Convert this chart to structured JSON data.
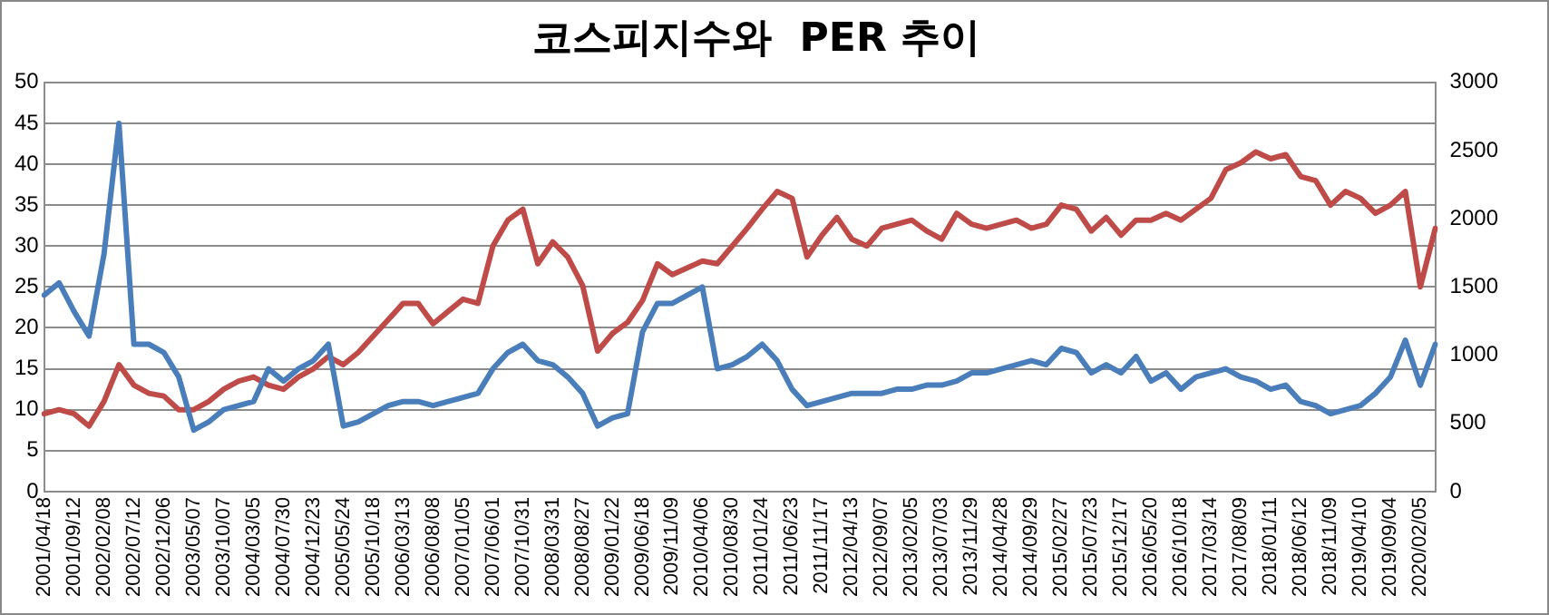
{
  "chart_data": {
    "type": "line",
    "title": "코스피지수와  PER 추이",
    "categories": [
      "2001/04/18",
      null,
      "2001/09/12",
      null,
      "2002/02/08",
      null,
      "2002/07/12",
      null,
      "2002/12/06",
      null,
      "2003/05/07",
      null,
      "2003/10/07",
      null,
      "2004/03/05",
      null,
      "2004/07/30",
      null,
      "2004/12/23",
      null,
      "2005/05/24",
      null,
      "2005/10/18",
      null,
      "2006/03/13",
      null,
      "2006/08/08",
      null,
      "2007/01/05",
      null,
      "2007/06/01",
      null,
      "2007/10/31",
      null,
      "2008/03/31",
      null,
      "2008/08/27",
      null,
      "2009/01/22",
      null,
      "2009/06/18",
      null,
      "2009/11/09",
      null,
      "2010/04/06",
      null,
      "2010/08/30",
      null,
      "2011/01/24",
      null,
      "2011/06/23",
      null,
      "2011/11/17",
      null,
      "2012/04/13",
      null,
      "2012/09/07",
      null,
      "2013/02/05",
      null,
      "2013/07/03",
      null,
      "2013/11/29",
      null,
      "2014/04/28",
      null,
      "2014/09/29",
      null,
      "2015/02/27",
      null,
      "2015/07/23",
      null,
      "2015/12/17",
      null,
      "2016/05/20",
      null,
      "2016/10/18",
      null,
      "2017/03/14",
      null,
      "2017/08/09",
      null,
      "2018/01/11",
      null,
      "2018/06/12",
      null,
      "2018/11/09",
      null,
      "2019/04/10",
      null,
      "2019/09/04",
      null,
      "2020/02/05",
      null
    ],
    "series": [
      {
        "color": "#4a7ebb",
        "values": [
          24,
          25.5,
          22,
          19,
          29,
          45,
          18,
          18,
          17,
          14,
          7.5,
          8.5,
          10,
          10.5,
          11,
          15,
          13.5,
          15,
          16,
          18,
          8,
          8.5,
          9.5,
          10.5,
          11,
          11,
          10.5,
          11,
          11.5,
          12,
          15,
          17,
          18,
          16,
          15.5,
          14,
          12,
          8,
          9,
          9.5,
          19.5,
          23,
          23,
          24,
          25,
          15,
          15.5,
          16.5,
          18,
          16,
          12.5,
          10.5,
          11,
          11.5,
          12,
          12,
          12,
          12.5,
          12.5,
          13,
          13,
          13.5,
          14.5,
          14.5,
          15,
          15.5,
          16,
          15.5,
          17.5,
          17,
          14.5,
          15.5,
          14.5,
          16.5,
          13.5,
          14.5,
          12.5,
          14,
          14.5,
          15,
          14,
          13.5,
          12.5,
          13,
          11,
          10.5,
          9.5,
          10,
          10.5,
          12,
          14,
          18.5,
          13,
          18
        ]
      },
      {
        "color": "#be4b48",
        "axis": "y2",
        "values": [
          570,
          600,
          570,
          480,
          660,
          930,
          780,
          720,
          700,
          600,
          600,
          660,
          750,
          810,
          840,
          780,
          750,
          840,
          900,
          990,
          930,
          1020,
          1140,
          1260,
          1380,
          1380,
          1230,
          1320,
          1410,
          1380,
          1800,
          1990,
          2070,
          1670,
          1830,
          1720,
          1510,
          1030,
          1160,
          1240,
          1400,
          1670,
          1590,
          1640,
          1690,
          1670,
          1800,
          1930,
          2070,
          2200,
          2150,
          1720,
          1880,
          2010,
          1850,
          1800,
          1930,
          1960,
          1990,
          1910,
          1850,
          2040,
          1960,
          1930,
          1960,
          1990,
          1930,
          1960,
          2100,
          2070,
          1910,
          2010,
          1880,
          1990,
          1990,
          2040,
          1990,
          2070,
          2150,
          2360,
          2410,
          2490,
          2440,
          2470,
          2310,
          2280,
          2100,
          2200,
          2150,
          2040,
          2100,
          2200,
          1500,
          1930
        ]
      }
    ],
    "ylim": [
      0,
      50
    ],
    "yticks": [
      0,
      5,
      10,
      15,
      20,
      25,
      30,
      35,
      40,
      45,
      50
    ],
    "y2lim": [
      0,
      3000
    ],
    "y2ticks": [
      0,
      500,
      1000,
      1500,
      2000,
      2500,
      3000
    ],
    "grid": "y",
    "legend": false,
    "marker": "none",
    "line_style": "solid"
  }
}
